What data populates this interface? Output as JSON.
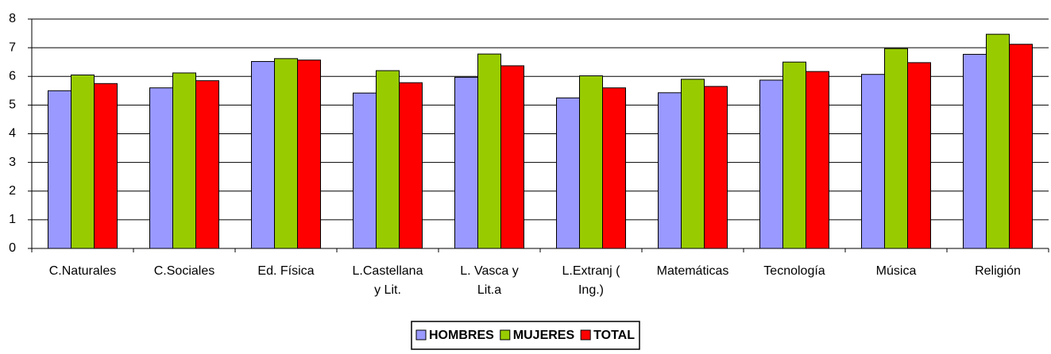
{
  "chart_data": {
    "type": "bar",
    "categories": [
      "C.Naturales",
      "C.Sociales",
      "Ed. Física",
      "L.Castellana\ny Lit.",
      "L. Vasca y\nLit.a",
      "L.Extranj (\nIng.)",
      "Matemáticas",
      "Tecnología",
      "Música",
      "Religión"
    ],
    "series": [
      {
        "name": "HOMBRES",
        "color": "#9999ff",
        "values": [
          5.5,
          5.6,
          6.52,
          5.42,
          5.97,
          5.25,
          5.43,
          5.87,
          6.07,
          6.77
        ]
      },
      {
        "name": "MUJERES",
        "color": "#99cc00",
        "values": [
          6.05,
          6.12,
          6.62,
          6.2,
          6.78,
          6.02,
          5.9,
          6.5,
          6.97,
          7.47
        ]
      },
      {
        "name": "TOTAL",
        "color": "#ff0000",
        "values": [
          5.75,
          5.85,
          6.57,
          5.78,
          6.37,
          5.6,
          5.65,
          6.17,
          6.48,
          7.12
        ]
      }
    ],
    "ylim": [
      0,
      8
    ],
    "yticks": [
      0,
      1,
      2,
      3,
      4,
      5,
      6,
      7,
      8
    ],
    "grid": true,
    "legend": "bottom"
  }
}
